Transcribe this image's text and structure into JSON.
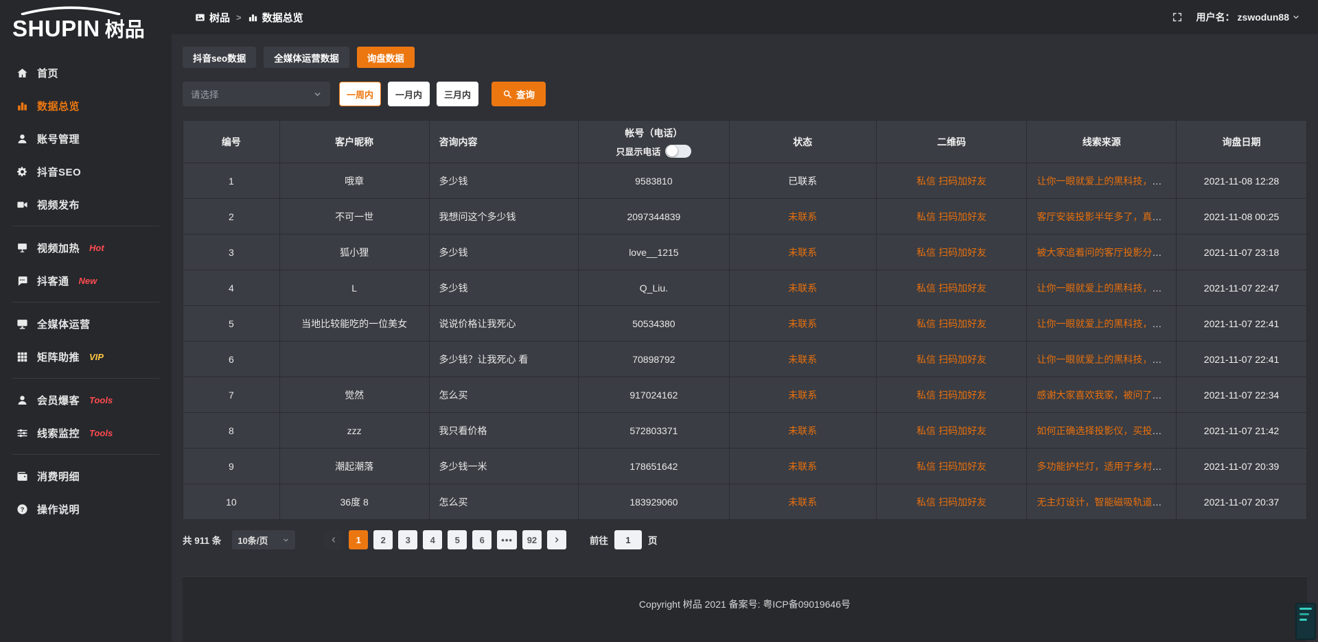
{
  "colors": {
    "accent": "#ec7711",
    "link_orange": "#e8700e",
    "badge_red": "#ff4b4f",
    "badge_gold": "#fdc741"
  },
  "logo": {
    "brand": "SHUPIN",
    "brand_cn": "树品"
  },
  "topbar": {
    "breadcrumb": [
      {
        "label": "树品"
      },
      {
        "label": "数据总览"
      }
    ],
    "separator": ">",
    "username_label": "用户名：",
    "username": "zswodun88"
  },
  "sidebar": {
    "items": [
      {
        "icon": "home-icon",
        "label": "首页"
      },
      {
        "icon": "bar-chart-icon",
        "label": "数据总览",
        "active": true
      },
      {
        "icon": "user-icon",
        "label": "账号管理",
        "chevron": true
      },
      {
        "icon": "gear-icon",
        "label": "抖音SEO",
        "chevron": true
      },
      {
        "icon": "video-camera-icon",
        "label": "视频发布",
        "chevron": true,
        "divider_after": true
      },
      {
        "icon": "screen-icon",
        "label": "视频加热",
        "badge": "Hot",
        "badge_color": "#ff4b4f",
        "chevron": true
      },
      {
        "icon": "chat-icon",
        "label": "抖客通",
        "badge": "New",
        "badge_color": "#ff4b4f",
        "chevron": true,
        "divider_after": true
      },
      {
        "icon": "monitor-icon",
        "label": "全媒体运营",
        "chevron": true
      },
      {
        "icon": "grid-icon",
        "label": "矩阵助推",
        "badge": "VIP",
        "badge_color": "#fdc741",
        "chevron": true,
        "divider_after": true
      },
      {
        "icon": "member-icon",
        "label": "会员爆客",
        "badge": "Tools",
        "badge_color": "#ff4b4f",
        "chevron": true
      },
      {
        "icon": "sliders-icon",
        "label": "线索监控",
        "badge": "Tools",
        "badge_color": "#ff4b4f",
        "chevron": true,
        "divider_after": true
      },
      {
        "icon": "wallet-icon",
        "label": "消费明细"
      },
      {
        "icon": "question-icon",
        "label": "操作说明"
      }
    ]
  },
  "tabs": [
    {
      "label": "抖音seo数据",
      "active": false
    },
    {
      "label": "全媒体运营数据",
      "active": false
    },
    {
      "label": "询盘数据",
      "active": true
    }
  ],
  "filters": {
    "select_placeholder": "请选择",
    "range_buttons": [
      {
        "label": "一周内",
        "active": true
      },
      {
        "label": "一月内",
        "active": false
      },
      {
        "label": "三月内",
        "active": false
      }
    ],
    "search_label": "查询"
  },
  "table": {
    "columns": [
      "编号",
      "客户昵称",
      "咨询内容",
      "帐号（电话）",
      "状态",
      "二维码",
      "线索来源",
      "询盘日期"
    ],
    "phone_toggle_label": "只显示电话",
    "phone_toggle_on": false,
    "rows": [
      {
        "no": "1",
        "nickname": "哦章",
        "content": "多少钱",
        "account": "9583810",
        "status": "已联系",
        "contacted": true,
        "qr": [
          "私信",
          "扫码加好友"
        ],
        "source": "让你一眼就爱上的黑科技，能...",
        "date": "2021-11-08 12:28"
      },
      {
        "no": "2",
        "nickname": "不可一世",
        "content": "我想问这个多少钱",
        "account": "2097344839",
        "status": "未联系",
        "contacted": false,
        "qr": [
          "私信",
          "扫码加好友"
        ],
        "source": "客厅安装投影半年多了，真实...",
        "date": "2021-11-08 00:25"
      },
      {
        "no": "3",
        "nickname": "狐小狸",
        "content": "多少钱",
        "account": "love__1215",
        "status": "未联系",
        "contacted": false,
        "qr": [
          "私信",
          "扫码加好友"
        ],
        "source": "被大家追着问的客厅投影分享...",
        "date": "2021-11-07 23:18"
      },
      {
        "no": "4",
        "nickname": "L",
        "content": "多少钱",
        "account": "Q_Liu.",
        "status": "未联系",
        "contacted": false,
        "qr": [
          "私信",
          "扫码加好友"
        ],
        "source": "让你一眼就爱上的黑科技，能...",
        "date": "2021-11-07 22:47"
      },
      {
        "no": "5",
        "nickname": "当地比较能吃的一位美女",
        "content": "说说价格让我死心",
        "account": "50534380",
        "status": "未联系",
        "contacted": false,
        "qr": [
          "私信",
          "扫码加好友"
        ],
        "source": "让你一眼就爱上的黑科技，能...",
        "date": "2021-11-07 22:41"
      },
      {
        "no": "6",
        "nickname": "",
        "content": "多少钱？让我死心 看",
        "account": "70898792",
        "status": "未联系",
        "contacted": false,
        "qr": [
          "私信",
          "扫码加好友"
        ],
        "source": "让你一眼就爱上的黑科技，能...",
        "date": "2021-11-07 22:41"
      },
      {
        "no": "7",
        "nickname": "觉然",
        "content": "怎么买",
        "account": "917024162",
        "status": "未联系",
        "contacted": false,
        "qr": [
          "私信",
          "扫码加好友"
        ],
        "source": "感谢大家喜欢我家，被问了好...",
        "date": "2021-11-07 22:34"
      },
      {
        "no": "8",
        "nickname": "zzz",
        "content": "我只看价格",
        "account": "572803371",
        "status": "未联系",
        "contacted": false,
        "qr": [
          "私信",
          "扫码加好友"
        ],
        "source": "如何正确选择投影仪，买投影...",
        "date": "2021-11-07 21:42"
      },
      {
        "no": "9",
        "nickname": "潮起潮落",
        "content": "多少钱一米",
        "account": "178651642",
        "status": "未联系",
        "contacted": false,
        "qr": [
          "私信",
          "扫码加好友"
        ],
        "source": "多功能护栏灯，适用于乡村文...",
        "date": "2021-11-07 20:39"
      },
      {
        "no": "10",
        "nickname": "36度 8",
        "content": "怎么买",
        "account": "183929060",
        "status": "未联系",
        "contacted": false,
        "qr": [
          "私信",
          "扫码加好友"
        ],
        "source": "无主灯设计，智能磁吸轨道灯...",
        "date": "2021-11-07 20:37"
      }
    ]
  },
  "pagination": {
    "total": "共 911 条",
    "page_size": "10条/页",
    "pages": [
      "1",
      "2",
      "3",
      "4",
      "5",
      "6",
      "...",
      "92"
    ],
    "active_page": "1",
    "goto_label": "前往",
    "goto_value": "1",
    "goto_suffix": "页"
  },
  "footer": {
    "copyright": "Copyright 树品 2021 备案号: 粤ICP备09019646号"
  }
}
